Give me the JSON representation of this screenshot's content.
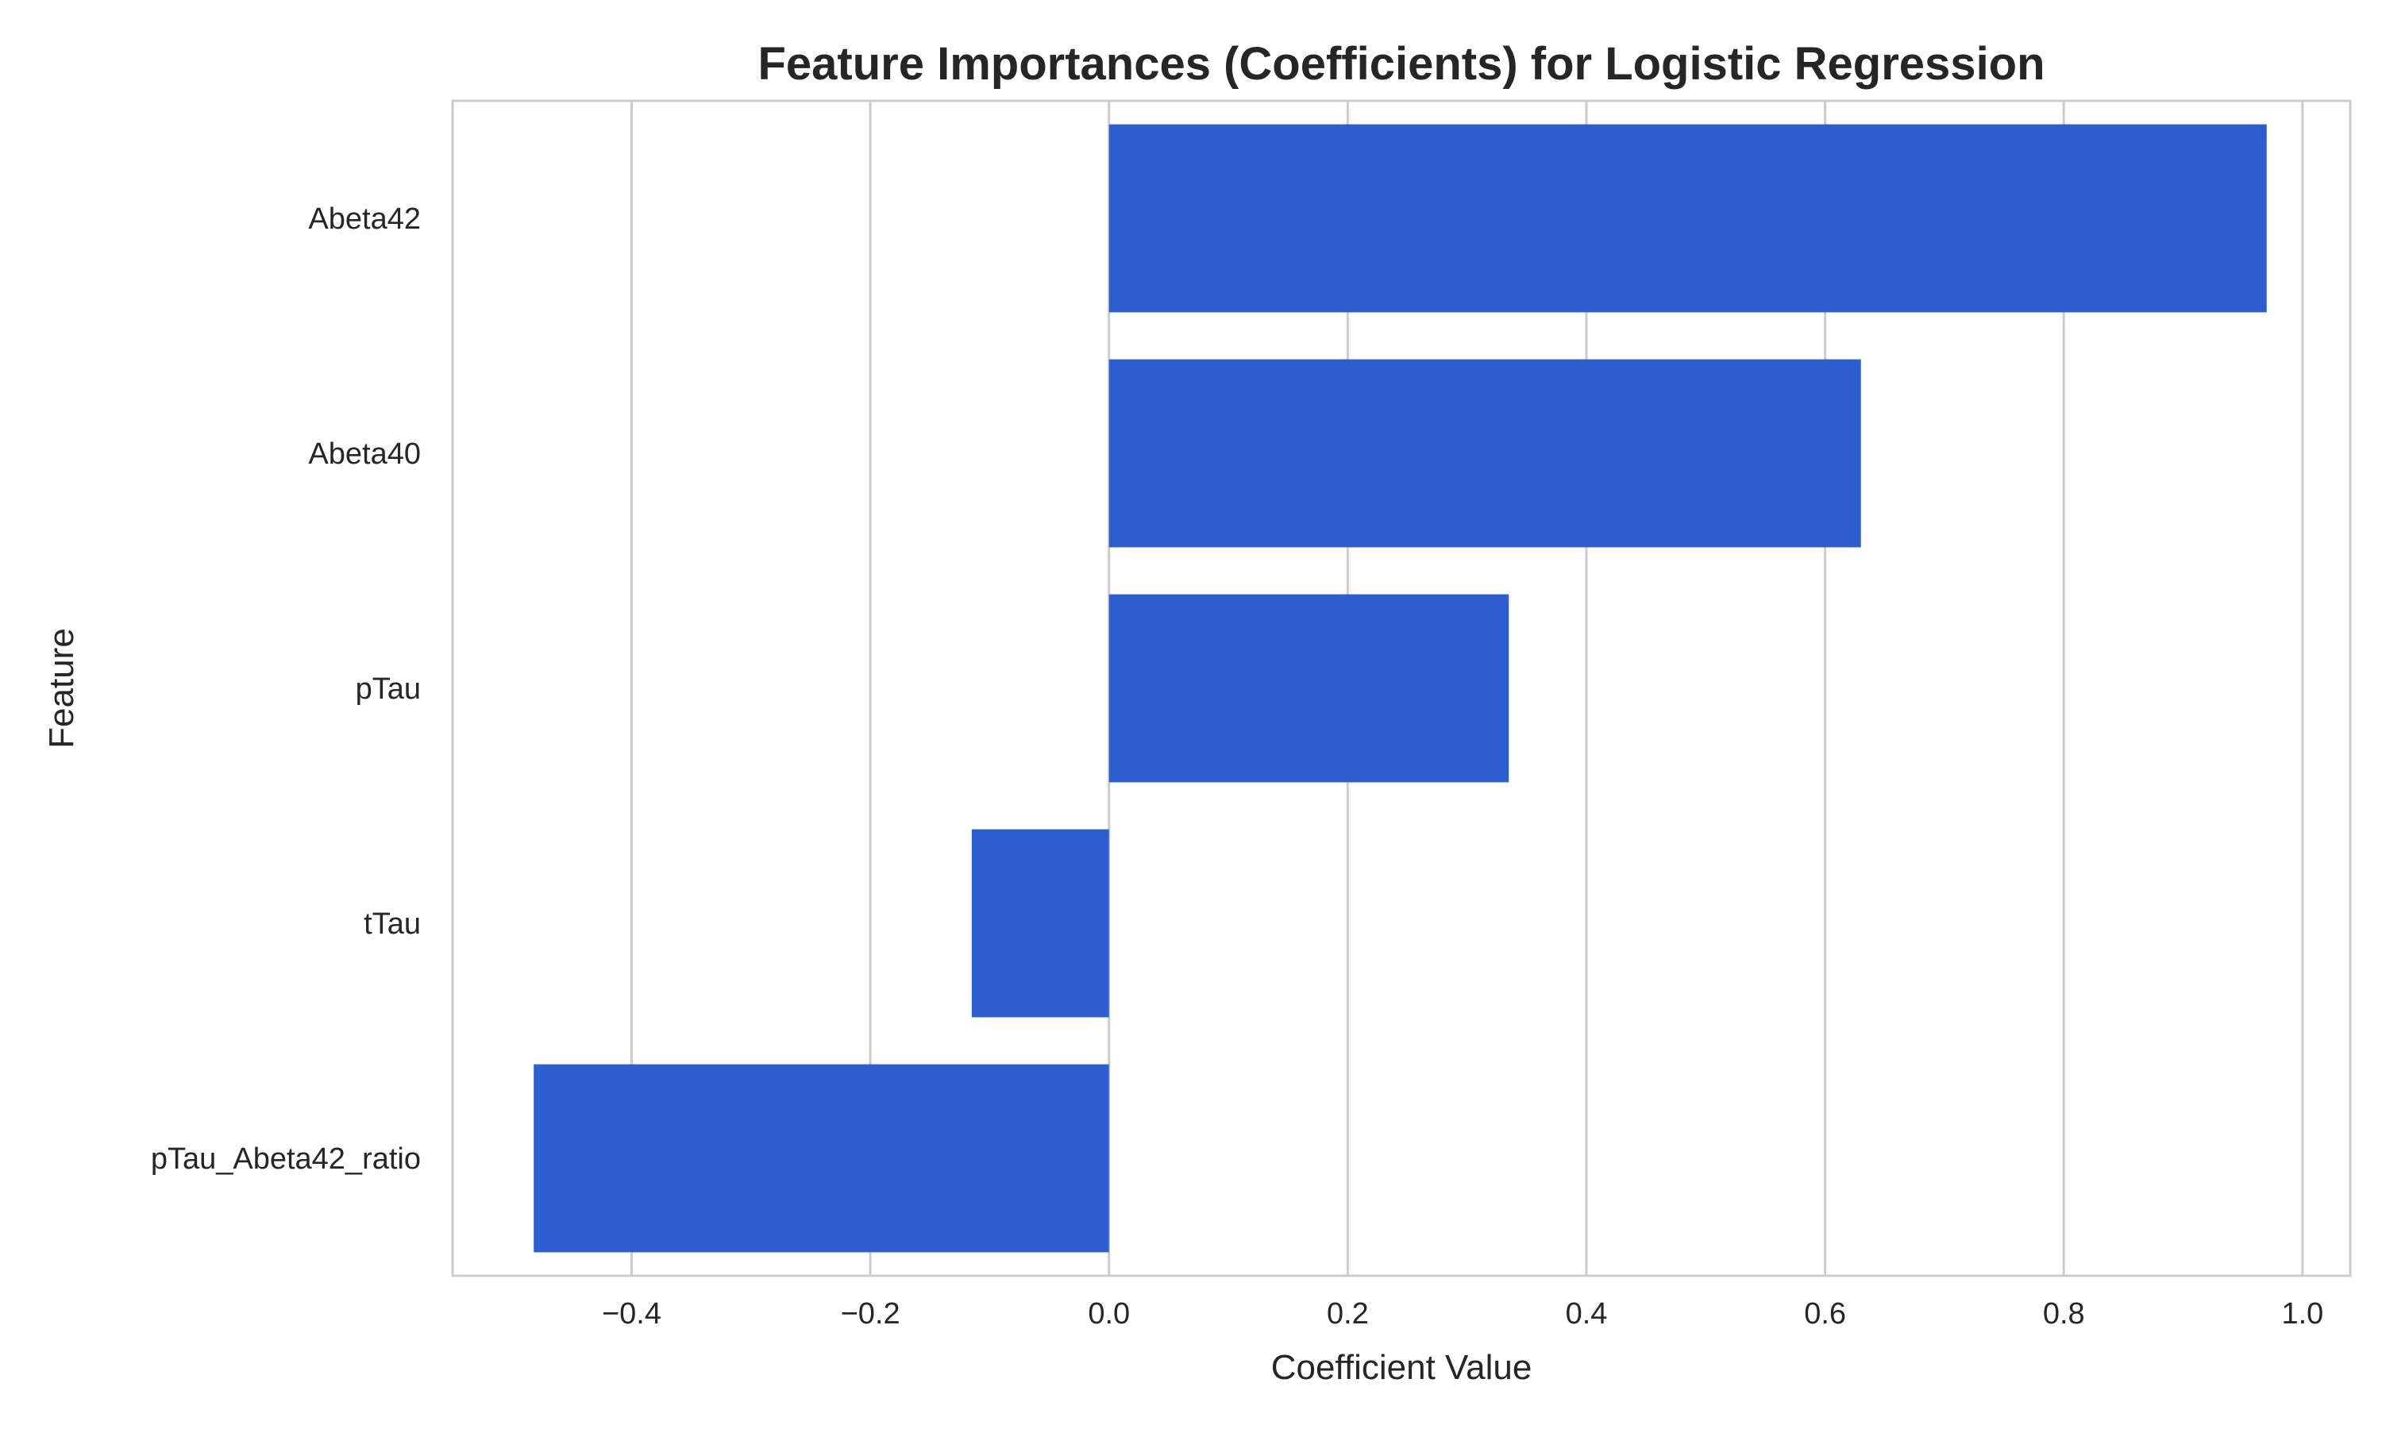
{
  "chart_data": {
    "type": "bar",
    "orientation": "horizontal",
    "title": "Feature Importances (Coefficients) for Logistic Regression",
    "xlabel": "Coefficient Value",
    "ylabel": "Feature",
    "categories": [
      "Abeta42",
      "Abeta40",
      "pTau",
      "tTau",
      "pTau_Abeta42_ratio"
    ],
    "values": [
      0.97,
      0.63,
      0.335,
      -0.115,
      -0.482
    ],
    "xlim": [
      -0.55,
      1.04
    ],
    "x_ticks": [
      -0.4,
      -0.2,
      0.0,
      0.2,
      0.4,
      0.6,
      0.8,
      1.0
    ],
    "x_tick_labels": [
      "−0.4",
      "−0.2",
      "0.0",
      "0.2",
      "0.4",
      "0.6",
      "0.8",
      "1.0"
    ],
    "grid": "vertical",
    "legend": "none",
    "bar_color": "#2d5ecf",
    "grid_color": "#cccccc",
    "frame_color": "#cccccc"
  }
}
